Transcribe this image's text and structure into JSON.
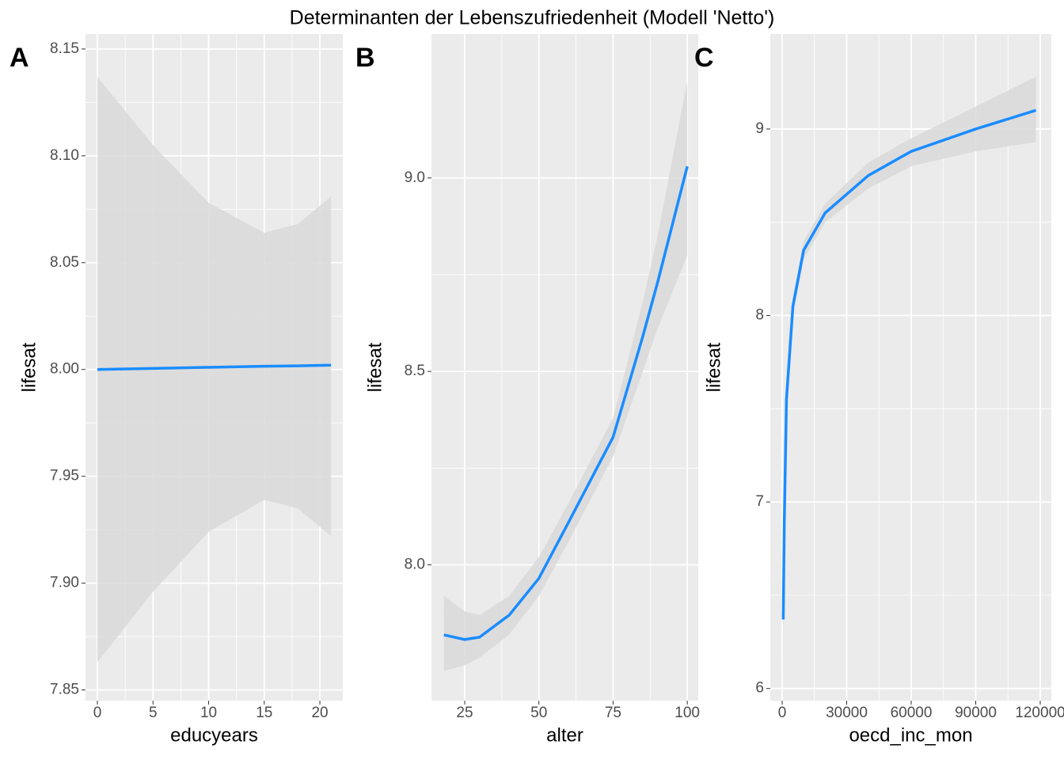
{
  "title": "Determinanten der Lebenszufriedenheit (Modell 'Netto')",
  "chart_data": [
    {
      "type": "line",
      "tag": "A",
      "xlabel": "educyears",
      "ylabel": "lifesat",
      "x": [
        0,
        5,
        10,
        15,
        18,
        21
      ],
      "series": [
        {
          "color": "#1a8cff",
          "values": [
            8.0,
            8.0005,
            8.001,
            8.0015,
            8.0017,
            8.002
          ]
        }
      ],
      "band_upper": [
        8.137,
        8.105,
        8.078,
        8.064,
        8.068,
        8.081
      ],
      "band_lower": [
        7.863,
        7.896,
        7.924,
        7.939,
        7.935,
        7.922
      ],
      "band_color": "#d9d9d9",
      "xlim": [
        -1.07,
        22.06
      ],
      "ylim": [
        7.845,
        8.157
      ],
      "xticks": [
        0,
        5,
        10,
        15,
        20
      ],
      "yticks": [
        7.85,
        {
          "value": 7.9,
          "label": "7.90"
        },
        7.95,
        {
          "value": 8.0,
          "label": "8.00"
        },
        8.05,
        {
          "value": 8.1,
          "label": "8.10"
        },
        8.15
      ],
      "grid": true
    },
    {
      "type": "line",
      "tag": "B",
      "xlabel": "alter",
      "ylabel": "lifesat",
      "x": [
        18,
        25,
        30,
        40,
        50,
        60,
        75,
        85,
        90,
        100
      ],
      "series": [
        {
          "color": "#1a8cff",
          "values": [
            7.819,
            7.807,
            7.813,
            7.87,
            7.965,
            8.11,
            8.33,
            8.59,
            8.73,
            9.03
          ]
        }
      ],
      "band_upper": [
        7.92,
        7.88,
        7.87,
        7.92,
        8.02,
        8.16,
        8.38,
        8.68,
        8.85,
        9.25
      ],
      "band_lower": [
        7.726,
        7.74,
        7.76,
        7.82,
        7.92,
        8.06,
        8.28,
        8.5,
        8.61,
        8.8
      ],
      "band_color": "#d9d9d9",
      "xlim": [
        13.8,
        103.7
      ],
      "ylim": [
        7.649,
        9.372
      ],
      "xticks": [
        25,
        50,
        75,
        100
      ],
      "yticks": [
        {
          "value": 8.0,
          "label": "8.0"
        },
        8.5,
        {
          "value": 9.0,
          "label": "9.0"
        }
      ],
      "grid": true
    },
    {
      "type": "line",
      "tag": "C",
      "xlabel": "oecd_inc_mon",
      "ylabel": "lifesat",
      "x": [
        500,
        1000,
        2000,
        5000,
        10000,
        20000,
        40000,
        60000,
        90000,
        118000
      ],
      "series": [
        {
          "color": "#1a8cff",
          "values": [
            6.37,
            6.9,
            7.55,
            8.05,
            8.35,
            8.55,
            8.75,
            8.88,
            9.0,
            9.1
          ]
        }
      ],
      "band_upper": [
        6.6,
        7.05,
        7.62,
        8.1,
        8.4,
        8.6,
        8.82,
        8.95,
        9.12,
        9.28
      ],
      "band_lower": [
        6.1,
        6.75,
        7.48,
        8.0,
        8.3,
        8.5,
        8.68,
        8.8,
        8.88,
        8.93
      ],
      "band_color": "#d9d9d9",
      "xlim": [
        -5520,
        125150
      ],
      "ylim": [
        5.935,
        9.509
      ],
      "xticks": [
        0,
        30000,
        60000,
        90000,
        120000
      ],
      "yticks": [
        6,
        7,
        8,
        9
      ],
      "grid": true
    }
  ]
}
